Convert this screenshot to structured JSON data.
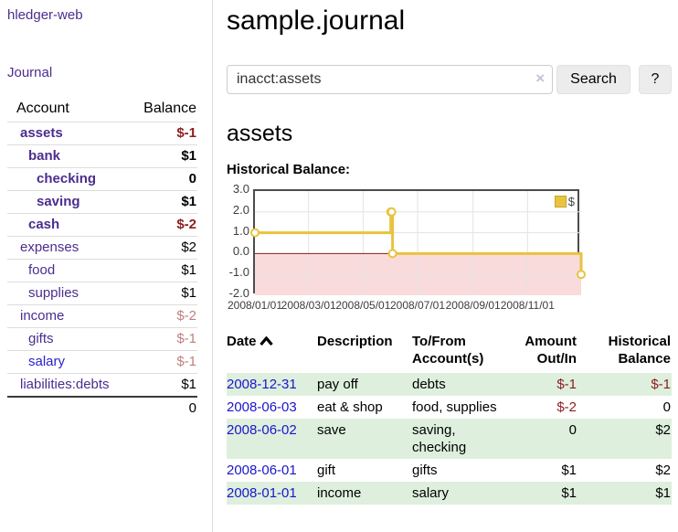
{
  "app": {
    "brand": "hledger-web",
    "journal_label": "Journal"
  },
  "sidebar": {
    "columns": {
      "account": "Account",
      "balance": "Balance"
    },
    "accounts": [
      {
        "name": "assets",
        "depth": 1,
        "bold": true,
        "balance": "$-1",
        "balance_style": "neg-strong",
        "link_color": "purple"
      },
      {
        "name": "bank",
        "depth": 2,
        "bold": true,
        "balance": "$1",
        "balance_style": "normal",
        "link_color": "purple"
      },
      {
        "name": "checking",
        "depth": 3,
        "bold": true,
        "balance": "0",
        "balance_style": "normal",
        "link_color": "purple"
      },
      {
        "name": "saving",
        "depth": 3,
        "bold": true,
        "balance": "$1",
        "balance_style": "normal",
        "link_color": "purple"
      },
      {
        "name": "cash",
        "depth": 2,
        "bold": true,
        "balance": "$-2",
        "balance_style": "neg-strong",
        "link_color": "purple"
      },
      {
        "name": "expenses",
        "depth": 1,
        "bold": false,
        "balance": "$2",
        "balance_style": "normal",
        "link_color": "purple"
      },
      {
        "name": "food",
        "depth": 2,
        "bold": false,
        "balance": "$1",
        "balance_style": "normal",
        "link_color": "purple"
      },
      {
        "name": "supplies",
        "depth": 2,
        "bold": false,
        "balance": "$1",
        "balance_style": "normal",
        "link_color": "purple"
      },
      {
        "name": "income",
        "depth": 1,
        "bold": false,
        "balance": "$-2",
        "balance_style": "neg-faded",
        "link_color": "purple"
      },
      {
        "name": "gifts",
        "depth": 2,
        "bold": false,
        "balance": "$-1",
        "balance_style": "neg-faded",
        "link_color": "purple"
      },
      {
        "name": "salary",
        "depth": 2,
        "bold": false,
        "balance": "$-1",
        "balance_style": "neg-faded",
        "link_color": "blue"
      },
      {
        "name": "liabilities:debts",
        "depth": 1,
        "bold": false,
        "balance": "$1",
        "balance_style": "normal",
        "link_color": "purple"
      }
    ],
    "total": "0"
  },
  "header": {
    "title": "sample.journal"
  },
  "search": {
    "value": "inacct:assets",
    "clear_icon": "×",
    "button_label": "Search",
    "help_label": "?"
  },
  "account_page": {
    "heading": "assets",
    "chart_label": "Historical Balance:"
  },
  "chart_data": {
    "type": "line",
    "step": true,
    "title": "Historical Balance:",
    "x_range": [
      "2008-01-01",
      "2008-12-31"
    ],
    "ylim": [
      -2,
      3
    ],
    "yticks": [
      "3.0",
      "2.0",
      "1.0",
      "0.0",
      "-1.0",
      "-2.0"
    ],
    "xticks": [
      {
        "date": "2008-01-01",
        "label": "2008/01/01"
      },
      {
        "date": "2008-03-01",
        "label": "2008/03/01"
      },
      {
        "date": "2008-05-01",
        "label": "2008/05/01"
      },
      {
        "date": "2008-07-01",
        "label": "2008/07/01"
      },
      {
        "date": "2008-09-01",
        "label": "2008/09/01"
      },
      {
        "date": "2008-11-01",
        "label": "2008/11/01"
      }
    ],
    "series": [
      {
        "name": "$",
        "color": "#e8c33f",
        "points": [
          {
            "date": "2008-01-01",
            "value": 1
          },
          {
            "date": "2008-06-01",
            "value": 2
          },
          {
            "date": "2008-06-02",
            "value": 2
          },
          {
            "date": "2008-06-03",
            "value": 0
          },
          {
            "date": "2008-12-31",
            "value": -1
          }
        ]
      }
    ],
    "grid": true,
    "legend_position": "top-right",
    "negative_band_color": "#f9dbdb",
    "zero_line_color": "#8c1717",
    "grid_color": "#e3e3e3"
  },
  "register": {
    "headers": {
      "date": "Date",
      "description": "Description",
      "accounts_line1": "To/From",
      "accounts_line2": "Account(s)",
      "amount_line1": "Amount",
      "amount_line2": "Out/In",
      "balance_line1": "Historical",
      "balance_line2": "Balance"
    },
    "rows": [
      {
        "date": "2008-12-31",
        "description": "pay off",
        "accounts": "debts",
        "amount": "$-1",
        "amount_style": "neg",
        "balance": "$-1",
        "balance_style": "neg",
        "shaded": true
      },
      {
        "date": "2008-06-03",
        "description": "eat & shop",
        "accounts": "food, supplies",
        "amount": "$-2",
        "amount_style": "neg",
        "balance": "0",
        "balance_style": "normal",
        "shaded": false
      },
      {
        "date": "2008-06-02",
        "description": "save",
        "accounts": "saving, checking",
        "amount": "0",
        "amount_style": "normal",
        "balance": "$2",
        "balance_style": "normal",
        "shaded": true
      },
      {
        "date": "2008-06-01",
        "description": "gift",
        "accounts": "gifts",
        "amount": "$1",
        "amount_style": "normal",
        "balance": "$2",
        "balance_style": "normal",
        "shaded": false
      },
      {
        "date": "2008-01-01",
        "description": "income",
        "accounts": "salary",
        "amount": "$1",
        "amount_style": "normal",
        "balance": "$1",
        "balance_style": "normal",
        "shaded": true
      }
    ]
  },
  "colors": {
    "accent_purple": "#4b2d8e",
    "link_blue": "#1a16cc",
    "negative_strong": "#8c1d1d",
    "negative_faded": "#c07f7f",
    "row_stripe_green": "#deefde",
    "chart_line_gold": "#e8c33f",
    "legend_swatch_border": "#caa32e"
  }
}
